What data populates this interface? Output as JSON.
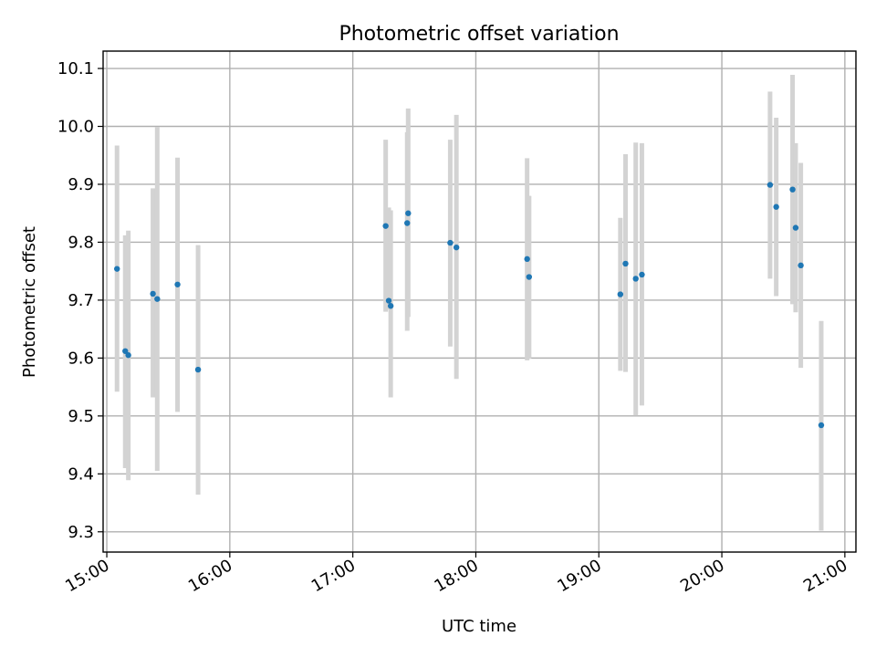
{
  "chart_data": {
    "type": "scatter",
    "title": "Photometric offset variation",
    "xlabel": "UTC time",
    "ylabel": "Photometric offset",
    "x_unit": "hours_utc",
    "xlim": [
      14.97,
      21.09
    ],
    "ylim": [
      9.265,
      10.13
    ],
    "xticks": [
      {
        "value": 15,
        "label": "15:00"
      },
      {
        "value": 16,
        "label": "16:00"
      },
      {
        "value": 17,
        "label": "17:00"
      },
      {
        "value": 18,
        "label": "18:00"
      },
      {
        "value": 19,
        "label": "19:00"
      },
      {
        "value": 20,
        "label": "20:00"
      },
      {
        "value": 21,
        "label": "21:00"
      }
    ],
    "yticks": [
      {
        "value": 9.3,
        "label": "9.3"
      },
      {
        "value": 9.4,
        "label": "9.4"
      },
      {
        "value": 9.5,
        "label": "9.5"
      },
      {
        "value": 9.6,
        "label": "9.6"
      },
      {
        "value": 9.7,
        "label": "9.7"
      },
      {
        "value": 9.8,
        "label": "9.8"
      },
      {
        "value": 9.9,
        "label": "9.9"
      },
      {
        "value": 10.0,
        "label": "10.0"
      },
      {
        "value": 10.1,
        "label": "10.1"
      }
    ],
    "grid": true,
    "point_color": "#1f77b4",
    "errorbar_color": "#d3d3d3",
    "points": [
      {
        "x": 15.083,
        "y": 9.754,
        "ylo": 9.542,
        "yhi": 9.967
      },
      {
        "x": 15.15,
        "y": 9.612,
        "ylo": 9.41,
        "yhi": 9.812
      },
      {
        "x": 15.175,
        "y": 9.605,
        "ylo": 9.389,
        "yhi": 9.82
      },
      {
        "x": 15.375,
        "y": 9.711,
        "ylo": 9.532,
        "yhi": 9.893
      },
      {
        "x": 15.41,
        "y": 9.702,
        "ylo": 9.405,
        "yhi": 9.999
      },
      {
        "x": 15.575,
        "y": 9.727,
        "ylo": 9.507,
        "yhi": 9.946
      },
      {
        "x": 15.742,
        "y": 9.58,
        "ylo": 9.364,
        "yhi": 9.795
      },
      {
        "x": 17.267,
        "y": 9.828,
        "ylo": 9.68,
        "yhi": 9.977
      },
      {
        "x": 17.292,
        "y": 9.699,
        "ylo": 9.684,
        "yhi": 9.86
      },
      {
        "x": 17.308,
        "y": 9.69,
        "ylo": 9.532,
        "yhi": 9.855
      },
      {
        "x": 17.442,
        "y": 9.833,
        "ylo": 9.647,
        "yhi": 9.99
      },
      {
        "x": 17.45,
        "y": 9.85,
        "ylo": 9.671,
        "yhi": 10.031
      },
      {
        "x": 17.792,
        "y": 9.799,
        "ylo": 9.62,
        "yhi": 9.977
      },
      {
        "x": 17.842,
        "y": 9.791,
        "ylo": 9.564,
        "yhi": 10.02
      },
      {
        "x": 18.417,
        "y": 9.771,
        "ylo": 9.596,
        "yhi": 9.945
      },
      {
        "x": 18.433,
        "y": 9.74,
        "ylo": 9.599,
        "yhi": 9.88
      },
      {
        "x": 19.175,
        "y": 9.71,
        "ylo": 9.578,
        "yhi": 9.842
      },
      {
        "x": 19.217,
        "y": 9.763,
        "ylo": 9.576,
        "yhi": 9.952
      },
      {
        "x": 19.3,
        "y": 9.737,
        "ylo": 9.501,
        "yhi": 9.972
      },
      {
        "x": 19.35,
        "y": 9.744,
        "ylo": 9.518,
        "yhi": 9.971
      },
      {
        "x": 20.392,
        "y": 9.899,
        "ylo": 9.737,
        "yhi": 10.06
      },
      {
        "x": 20.442,
        "y": 9.861,
        "ylo": 9.707,
        "yhi": 10.015
      },
      {
        "x": 20.575,
        "y": 9.891,
        "ylo": 9.693,
        "yhi": 10.089
      },
      {
        "x": 20.6,
        "y": 9.825,
        "ylo": 9.679,
        "yhi": 9.971
      },
      {
        "x": 20.642,
        "y": 9.76,
        "ylo": 9.583,
        "yhi": 9.937
      },
      {
        "x": 20.808,
        "y": 9.484,
        "ylo": 9.302,
        "yhi": 9.664
      }
    ]
  }
}
